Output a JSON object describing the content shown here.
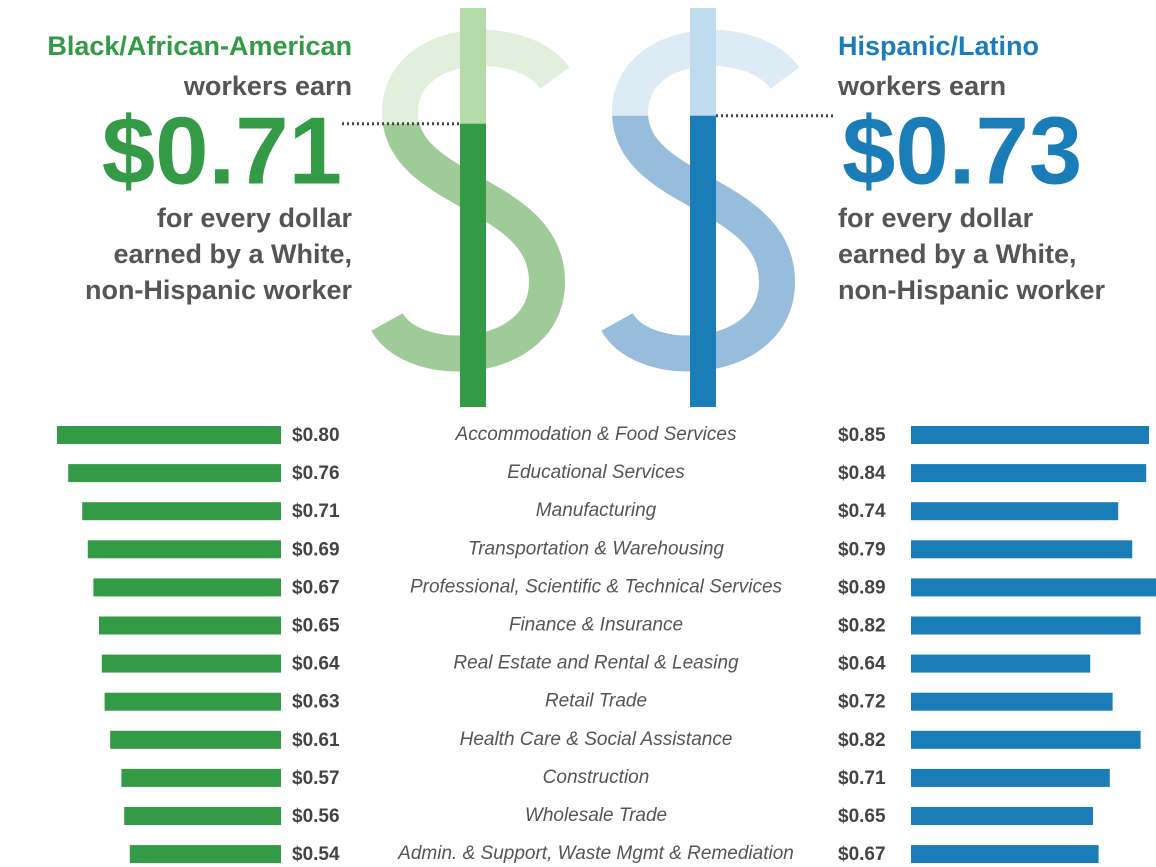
{
  "chart_data": {
    "type": "bar",
    "categories": [
      "Accommodation & Food Services",
      "Educational Services",
      "Manufacturing",
      "Transportation & Warehousing",
      "Professional, Scientific & Technical Services",
      "Finance & Insurance",
      "Real Estate and Rental & Leasing",
      "Retail Trade",
      "Health Care & Social Assistance",
      "Construction",
      "Wholesale Trade",
      "Admin. & Support, Waste Mgmt & Remediation"
    ],
    "series": [
      {
        "name": "Black/African-American",
        "color": "#339a45",
        "subtitle": "workers earn",
        "overall": 0.71,
        "overall_label": "$0.71",
        "note": [
          "for every dollar",
          "earned by a White,",
          "non-Hispanic worker"
        ],
        "values": [
          0.8,
          0.76,
          0.71,
          0.69,
          0.67,
          0.65,
          0.64,
          0.63,
          0.61,
          0.57,
          0.56,
          0.54
        ],
        "value_labels": [
          "$0.80",
          "$0.76",
          "$0.71",
          "$0.69",
          "$0.67",
          "$0.65",
          "$0.64",
          "$0.63",
          "$0.61",
          "$0.57",
          "$0.56",
          "$0.54"
        ]
      },
      {
        "name": "Hispanic/Latino",
        "color": "#1a7db8",
        "subtitle": "workers earn",
        "overall": 0.73,
        "overall_label": "$0.73",
        "note": [
          "for every dollar",
          "earned by a White,",
          "non-Hispanic worker"
        ],
        "values": [
          0.85,
          0.84,
          0.74,
          0.79,
          0.89,
          0.82,
          0.64,
          0.72,
          0.82,
          0.71,
          0.65,
          0.67
        ],
        "value_labels": [
          "$0.85",
          "$0.84",
          "$0.74",
          "$0.79",
          "$0.89",
          "$0.82",
          "$0.64",
          "$0.72",
          "$0.82",
          "$0.71",
          "$0.65",
          "$0.67"
        ]
      }
    ]
  }
}
